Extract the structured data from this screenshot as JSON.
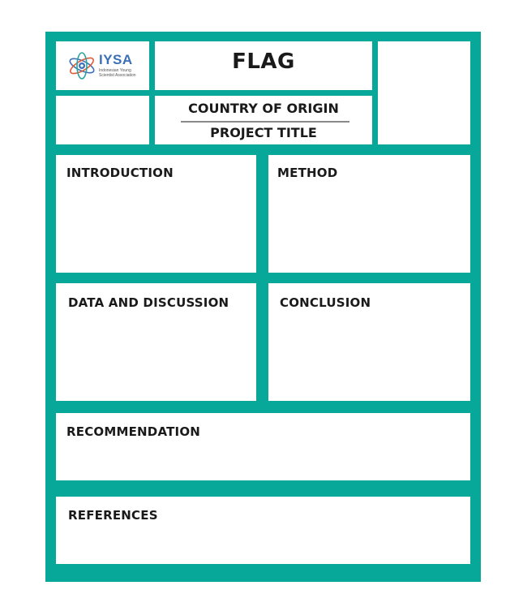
{
  "logo": {
    "name": "IYSA",
    "subtitle": "Indonesian Young Scientist Association",
    "colors": {
      "primary": "#3b6fb6",
      "accent": "#e05a3a",
      "secondary": "#2aa3a0"
    }
  },
  "header": {
    "flag": "FLAG",
    "country": "COUNTRY OF ORIGIN",
    "project_title": "PROJECT TITLE"
  },
  "sections": {
    "introduction": "INTRODUCTION",
    "method": "METHOD",
    "data_discussion": "DATA AND DISCUSSION",
    "conclusion": "CONCLUSION",
    "recommendation": "RECOMMENDATION",
    "references": "REFERENCES"
  },
  "colors": {
    "frame": "#07a89a",
    "panel": "#ffffff",
    "text": "#1a1a1a"
  }
}
